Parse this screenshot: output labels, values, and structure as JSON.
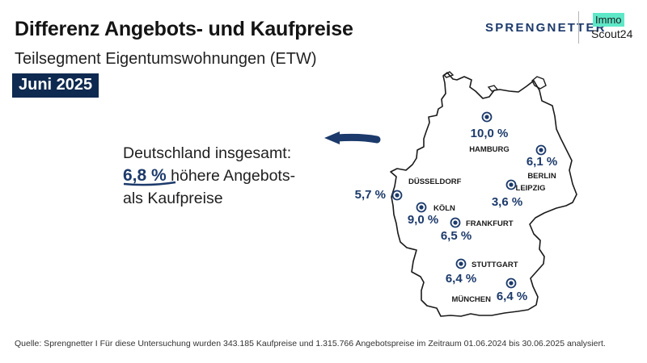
{
  "header": {
    "title": "Differenz Angebots- und Kaufpreise",
    "subtitle": "Teilsegment Eigentumswohnungen (ETW)",
    "date_badge": "Juni 2025"
  },
  "logos": {
    "sprengnetter": "SPRENGNETTER",
    "immo": "Immo",
    "scout24": "Scout24"
  },
  "headline": {
    "line1": "Deutschland insgesamt:",
    "highlight_value": "6,8 %",
    "line2_rest": "höhere Angebots-",
    "line3": "als Kaufpreise"
  },
  "cities": [
    {
      "name": "HAMBURG",
      "value": "10,0 %"
    },
    {
      "name": "BERLIN",
      "value": "6,1 %"
    },
    {
      "name": "LEIPZIG",
      "value": "3,6 %"
    },
    {
      "name": "DÜSSELDORF",
      "value": "5,7 %"
    },
    {
      "name": "KÖLN",
      "value": "9,0 %"
    },
    {
      "name": "FRANKFURT",
      "value": "6,5 %"
    },
    {
      "name": "STUTTGART",
      "value": "6,4 %"
    },
    {
      "name": "MÜNCHEN",
      "value": "6,4 %"
    }
  ],
  "colors": {
    "navy": "#1c3a6b",
    "badge": "#0f2a50",
    "immo_accent": "#5ee8c8"
  },
  "icons": [
    "arrow-left-icon",
    "city-marker-icon"
  ],
  "source": "Quelle: Sprengnetter I Für diese Untersuchung wurden 343.185 Kaufpreise und 1.315.766 Angebotspreise im Zeitraum 01.06.2024 bis 30.06.2025 analysiert."
}
